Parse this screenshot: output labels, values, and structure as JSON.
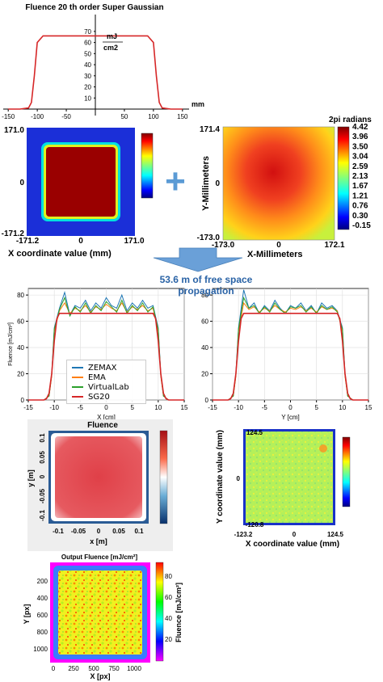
{
  "top_profile": {
    "title": "Fluence 20 th order Super Gaussian",
    "unit_top": "mJ",
    "unit_bottom": "cm2",
    "x_unit": "mm",
    "x_ticks": [
      "-150",
      "-100",
      "-50",
      "0",
      "50",
      "100",
      "150"
    ],
    "y_ticks": [
      "0",
      "10",
      "20",
      "30",
      "40",
      "50",
      "60",
      "70"
    ]
  },
  "input_fluence_map": {
    "y_top": "171.0",
    "y_mid": "0",
    "y_bottom": "-171.2",
    "x_left": "-171.2",
    "x_mid": "0",
    "x_right": "171.0",
    "xlabel": "X coordinate value (mm)"
  },
  "plus_sign": "+",
  "phase_map": {
    "colorbar_title": "2pi radians",
    "colorbar_ticks": [
      "4.42",
      "3.96",
      "3.50",
      "3.04",
      "2.59",
      "2.13",
      "1.67",
      "1.21",
      "0.76",
      "0.30",
      "-0.15"
    ],
    "y_top": "171.4",
    "y_mid": "0",
    "y_bottom": "-173.0",
    "ylabel": "Y-Millimeters",
    "x_left": "-173.0",
    "x_mid": "0",
    "x_right": "172.1",
    "xlabel": "X-Millimeters"
  },
  "banner_text": "53.6 m of free space propagation",
  "colors": {
    "zemax": "#1f77b4",
    "ema": "#ff7f0e",
    "virtuallab": "#2ca02c",
    "sg20": "#d62728",
    "arrow": "#6aa0d8",
    "banner": "#2a63a6"
  },
  "chart_data": [
    {
      "type": "line",
      "title": "Fluence 20 th order Super Gaussian",
      "xlabel": "mm",
      "ylabel": "mJ/cm2",
      "xlim": [
        -160,
        160
      ],
      "ylim": [
        0,
        75
      ],
      "series": [
        {
          "name": "",
          "x": [
            -150,
            -130,
            -115,
            -110,
            -105,
            -100,
            -90,
            0,
            90,
            100,
            105,
            110,
            115,
            130,
            150
          ],
          "values": [
            0,
            0,
            1,
            6,
            30,
            60,
            66,
            66,
            66,
            60,
            30,
            6,
            1,
            0,
            0
          ]
        }
      ]
    },
    {
      "type": "line",
      "xlabel": "X [cm]",
      "ylabel": "Fluence [mJ/cm²]",
      "xlim": [
        -15,
        15
      ],
      "ylim": [
        0,
        85
      ],
      "x_ticks": [
        "-15",
        "-10",
        "-5",
        "0",
        "5",
        "10",
        "15"
      ],
      "y_ticks": [
        "0",
        "20",
        "40",
        "60",
        "80"
      ],
      "series": [
        {
          "name": "ZEMAX",
          "x": [
            -15,
            -12,
            -11,
            -10.5,
            -10,
            -9,
            -8,
            -7,
            -6,
            -5,
            -4,
            -3,
            -2,
            -1,
            0,
            1,
            2,
            3,
            4,
            5,
            6,
            7,
            8,
            9,
            10,
            10.5,
            11,
            12,
            15
          ],
          "values": [
            0,
            0,
            3,
            20,
            55,
            70,
            82,
            65,
            72,
            70,
            76,
            68,
            74,
            70,
            78,
            72,
            70,
            80,
            68,
            74,
            70,
            76,
            70,
            72,
            55,
            20,
            3,
            0,
            0
          ]
        },
        {
          "name": "EMA",
          "x": [
            -15,
            -12,
            -11,
            -10.5,
            -10,
            -9,
            -8,
            -7,
            -6,
            -5,
            -4,
            -3,
            -2,
            -1,
            0,
            1,
            2,
            3,
            4,
            5,
            6,
            7,
            8,
            9,
            10,
            10.5,
            11,
            12,
            15
          ],
          "values": [
            0,
            0,
            3,
            18,
            52,
            68,
            74,
            66,
            70,
            68,
            72,
            67,
            71,
            69,
            73,
            70,
            68,
            74,
            67,
            71,
            69,
            72,
            68,
            70,
            52,
            18,
            3,
            0,
            0
          ]
        },
        {
          "name": "VirtualLab",
          "x": [
            -15,
            -12,
            -11,
            -10.5,
            -10,
            -9,
            -8,
            -7,
            -6,
            -5,
            -4,
            -3,
            -2,
            -1,
            0,
            1,
            2,
            3,
            4,
            5,
            6,
            7,
            8,
            9,
            10,
            10.5,
            11,
            12,
            15
          ],
          "values": [
            0,
            0,
            3,
            19,
            54,
            69,
            78,
            64,
            71,
            67,
            74,
            66,
            72,
            68,
            75,
            71,
            67,
            76,
            66,
            72,
            68,
            74,
            67,
            71,
            54,
            19,
            3,
            0,
            0
          ]
        },
        {
          "name": "SG20",
          "x": [
            -15,
            -12,
            -11.5,
            -11,
            -10.5,
            -10,
            -9.5,
            -9,
            0,
            9,
            9.5,
            10,
            10.5,
            11,
            11.5,
            12,
            15
          ],
          "values": [
            0,
            0,
            1,
            5,
            20,
            45,
            62,
            66,
            66,
            66,
            62,
            45,
            20,
            5,
            1,
            0,
            0
          ]
        }
      ]
    },
    {
      "type": "line",
      "xlabel": "Y [cm]",
      "ylabel": "",
      "xlim": [
        -15,
        15
      ],
      "ylim": [
        0,
        85
      ],
      "x_ticks": [
        "-15",
        "-10",
        "-5",
        "0",
        "5",
        "10",
        "15"
      ],
      "y_ticks": [
        "0",
        "20",
        "40",
        "60",
        "80"
      ],
      "series": [
        {
          "name": "ZEMAX",
          "x": [
            -15,
            -12,
            -11,
            -10.5,
            -10,
            -9,
            -8,
            -7,
            -6,
            -5,
            -4,
            -3,
            -2,
            -1,
            0,
            1,
            2,
            3,
            4,
            5,
            6,
            7,
            8,
            9,
            10,
            10.5,
            11,
            12,
            15
          ],
          "values": [
            0,
            0,
            3,
            20,
            55,
            84,
            70,
            74,
            66,
            72,
            68,
            76,
            70,
            66,
            72,
            70,
            74,
            68,
            72,
            66,
            74,
            70,
            72,
            68,
            55,
            20,
            3,
            0,
            0
          ]
        },
        {
          "name": "EMA",
          "x": [
            -15,
            -12,
            -11,
            -10.5,
            -10,
            -9,
            -8,
            -7,
            -6,
            -5,
            -4,
            -3,
            -2,
            -1,
            0,
            1,
            2,
            3,
            4,
            5,
            6,
            7,
            8,
            9,
            10,
            10.5,
            11,
            12,
            15
          ],
          "values": [
            0,
            0,
            3,
            18,
            52,
            74,
            69,
            71,
            67,
            70,
            68,
            72,
            69,
            67,
            70,
            69,
            71,
            68,
            70,
            67,
            71,
            69,
            70,
            68,
            52,
            18,
            3,
            0,
            0
          ]
        },
        {
          "name": "VirtualLab",
          "x": [
            -15,
            -12,
            -11,
            -10.5,
            -10,
            -9,
            -8,
            -7,
            -6,
            -5,
            -4,
            -3,
            -2,
            -1,
            0,
            1,
            2,
            3,
            4,
            5,
            6,
            7,
            8,
            9,
            10,
            10.5,
            11,
            12,
            15
          ],
          "values": [
            0,
            0,
            3,
            19,
            54,
            78,
            70,
            72,
            66,
            71,
            67,
            74,
            69,
            66,
            71,
            70,
            72,
            67,
            71,
            66,
            72,
            69,
            71,
            67,
            54,
            19,
            3,
            0,
            0
          ]
        },
        {
          "name": "SG20",
          "x": [
            -15,
            -12,
            -11.5,
            -11,
            -10.5,
            -10,
            -9.5,
            -9,
            0,
            9,
            9.5,
            10,
            10.5,
            11,
            11.5,
            12,
            15
          ],
          "values": [
            0,
            0,
            1,
            5,
            20,
            45,
            62,
            66,
            66,
            66,
            62,
            45,
            20,
            5,
            1,
            0,
            0
          ]
        }
      ]
    },
    {
      "type": "heatmap",
      "title": "Fluence",
      "xlabel": "x [m]",
      "ylabel": "y [m]",
      "x_ticks": [
        "-0.1",
        "-0.05",
        "0",
        "0.05",
        "0.1"
      ],
      "y_ticks": [
        "0.1",
        "0.05",
        "0",
        "-0.05",
        "-0.1"
      ]
    },
    {
      "type": "heatmap",
      "xlabel": "X coordinate value (mm)",
      "ylabel": "Y coordinate value (mm)",
      "x_ticks": [
        "-123.2",
        "0",
        "124.5"
      ],
      "y_ticks": [
        "124.5",
        "0",
        "-120.8"
      ]
    },
    {
      "type": "heatmap",
      "title": "Output Fluence [mJ/cm²]",
      "xlabel": "X [px]",
      "ylabel": "Y [px]",
      "colorbar_label": "Fluence [mJ/cm²]",
      "x_ticks": [
        "0",
        "250",
        "500",
        "750",
        "1000"
      ],
      "y_ticks": [
        "200",
        "400",
        "600",
        "800",
        "1000"
      ],
      "colorbar_ticks": [
        "80",
        "60",
        "40",
        "20"
      ]
    }
  ]
}
